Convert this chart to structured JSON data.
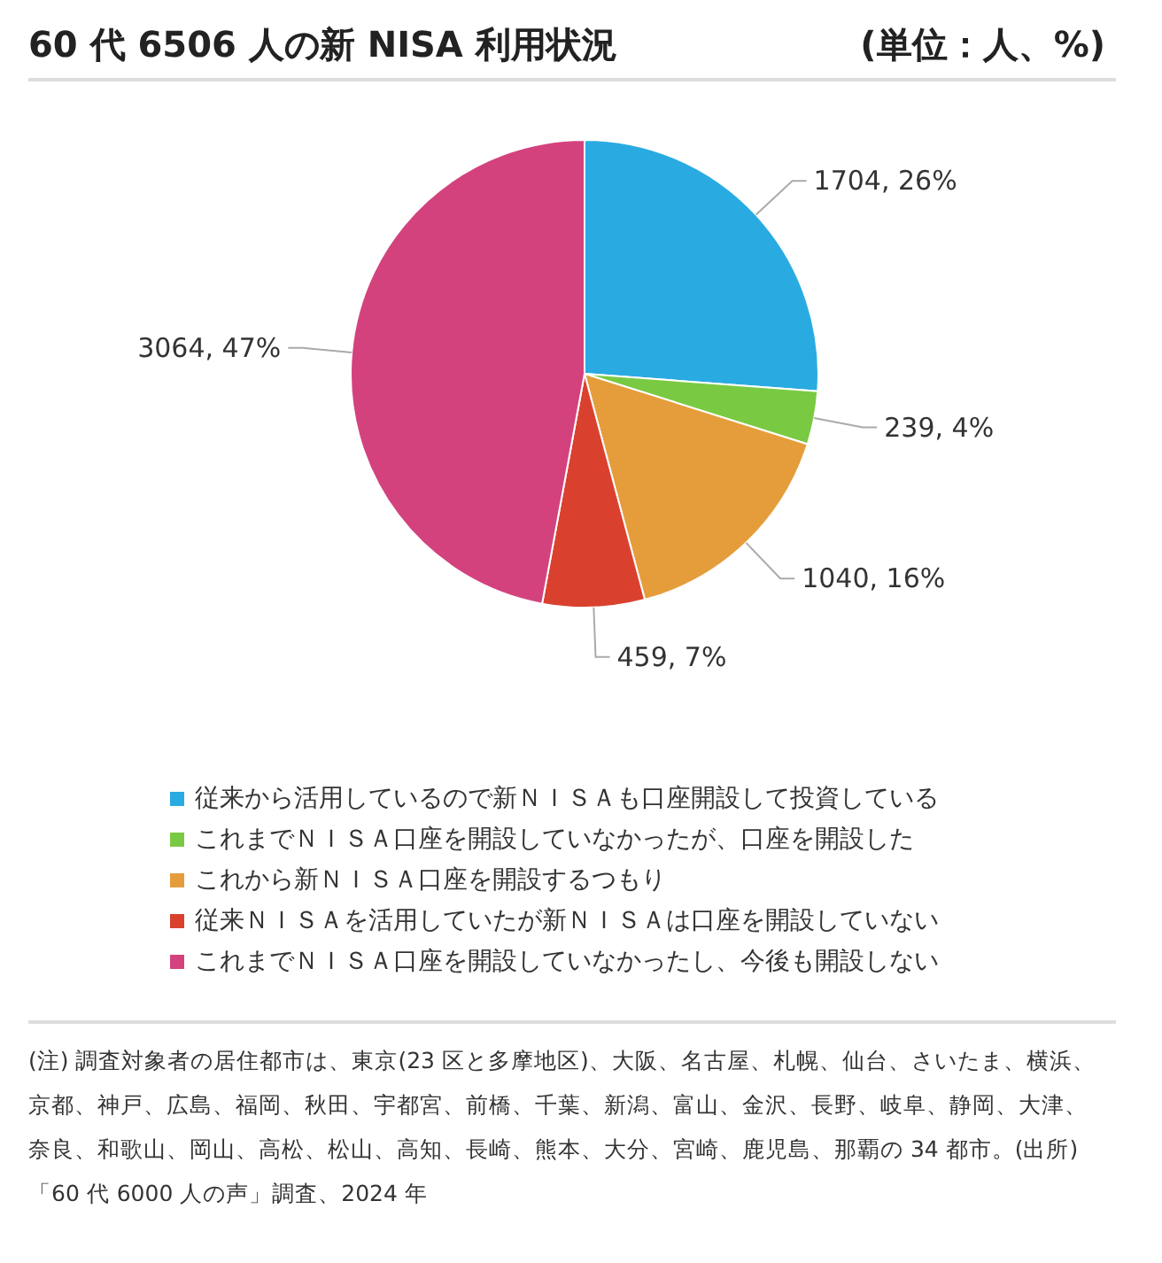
{
  "chart_data": {
    "type": "pie",
    "title": "60 代 6506 人の新 NISA 利用状況",
    "subtitle": "(単位：人、%)",
    "categories": [
      "従来から活用しているので新ＮＩＳＡも口座開設して投資している",
      "これまでＮＩＳＡ口座を開設していなかったが、口座を開設した",
      "これから新ＮＩＳＡ口座を開設するつもり",
      "従来ＮＩＳＡを活用していたが新ＮＩＳＡは口座を開設していない",
      "これまでＮＩＳＡ口座を開設していなかったし、今後も開設しない"
    ],
    "values": [
      1704,
      239,
      1040,
      459,
      3064
    ],
    "value_labels": [
      "1704, 26%",
      "239, 4%",
      "1040, 16%",
      "459, 7%",
      "3064, 47%"
    ],
    "colors": [
      "#29abe2",
      "#7ac943",
      "#e59d3c",
      "#d9412e",
      "#d4427e"
    ],
    "legend": "bottom",
    "annotations": [
      "(注) 調査対象者の居住都市は、東京(23 区と多摩地区)、大阪、名古屋、札幌、仙台、さいたま、横浜、京都、神戸、広島、福岡、秋田、宇都宮、前橋、千葉、新潟、富山、金沢、長野、岐阜、静岡、大津、奈良、和歌山、岡山、高松、松山、高知、長崎、熊本、大分、宮崎、鹿児島、那覇の 34 都市。(出所)「60 代 6000 人の声」調査、2024 年"
    ]
  }
}
